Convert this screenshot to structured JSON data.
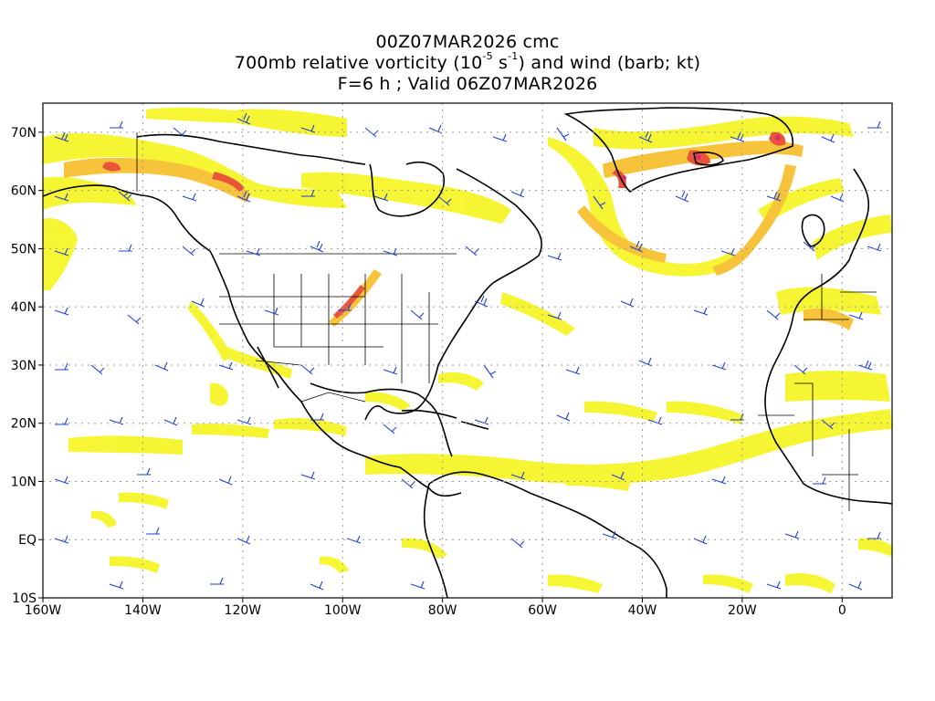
{
  "title": {
    "line1": "00Z07MAR2026 cmc",
    "line2_prefix": "700mb relative vorticity (10",
    "line2_exp1": "-5",
    "line2_mid": " s",
    "line2_exp2": "-1",
    "line2_suffix": ") and wind (barb; kt)",
    "line3": "F=6 h ; Valid 06Z07MAR2026"
  },
  "axes": {
    "lat_labels": [
      "70N",
      "60N",
      "50N",
      "40N",
      "30N",
      "20N",
      "10N",
      "EQ",
      "10S"
    ],
    "lon_labels": [
      "160W",
      "140W",
      "120W",
      "100W",
      "80W",
      "60W",
      "40W",
      "20W",
      "0"
    ],
    "lat_values": [
      70,
      60,
      50,
      40,
      30,
      20,
      10,
      0,
      -10
    ],
    "lon_values": [
      -160,
      -140,
      -120,
      -100,
      -80,
      -60,
      -40,
      -20,
      0
    ],
    "lon_range": [
      -160,
      10
    ],
    "lat_range": [
      -10,
      75
    ],
    "grid": "dotted"
  },
  "colors": {
    "shade_levels": [
      "#f5f52a",
      "#f7d435",
      "#f5b041",
      "#f08a3c",
      "#e84e3a",
      "#d8306a"
    ],
    "barb": "#2040d0",
    "coast": "#000000",
    "grid": "#9a9a9a"
  },
  "vorticity_features": [
    {
      "name": "alaska-band",
      "level": 3
    },
    {
      "name": "greenland-band",
      "level": 5
    },
    {
      "name": "central-us-band",
      "level": 4
    },
    {
      "name": "atlantic-arc",
      "level": 2
    }
  ]
}
